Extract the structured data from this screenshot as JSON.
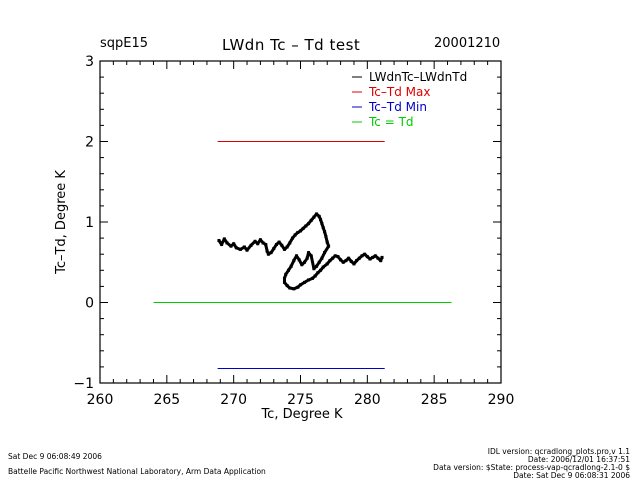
{
  "header": {
    "site": "sqpE15",
    "title": "LWdn Tc – Td test",
    "date": "20001210"
  },
  "footer": {
    "left_line1": "Sat Dec  9 06:08:49 2006",
    "left_line2": "Battelle Pacific Northwest National Laboratory, Arm Data Application",
    "right_line1": "IDL version: qcradlong_plots.pro,v 1.1",
    "right_line2": "Date: 2006/12/01 16:37:51",
    "right_line3": "Data version: $State: process-vap-qcradlong-2.1-0 $",
    "right_line4": "Date: Sat Dec  9 06:08:31 2006"
  },
  "colors": {
    "lwdn": "#000000",
    "max": "#dd0000",
    "min": "#0000cc",
    "zero": "#00cc00"
  },
  "chart_data": {
    "type": "scatter",
    "title": "LWdn Tc – Td test",
    "xlabel": "Tc, Degree K",
    "ylabel": "Tc–Td, Degree K",
    "xlim": [
      260,
      290
    ],
    "ylim": [
      -1,
      3
    ],
    "xticks": [
      "260",
      "265",
      "270",
      "275",
      "280",
      "285",
      "290"
    ],
    "yticks": [
      "−1",
      "0",
      "1",
      "2",
      "3"
    ],
    "legend_position": "top-right",
    "series": [
      {
        "name": "LWdnTc–LWdnTd",
        "kind": "scatter",
        "color": "#000000",
        "points": [
          [
            268.9,
            0.77
          ],
          [
            269.1,
            0.72
          ],
          [
            269.3,
            0.79
          ],
          [
            269.5,
            0.74
          ],
          [
            269.8,
            0.7
          ],
          [
            270.0,
            0.73
          ],
          [
            270.2,
            0.68
          ],
          [
            270.5,
            0.66
          ],
          [
            270.8,
            0.69
          ],
          [
            271.0,
            0.65
          ],
          [
            271.3,
            0.71
          ],
          [
            271.6,
            0.76
          ],
          [
            271.8,
            0.73
          ],
          [
            272.0,
            0.78
          ],
          [
            272.2,
            0.74
          ],
          [
            272.4,
            0.72
          ],
          [
            272.5,
            0.64
          ],
          [
            272.6,
            0.6
          ],
          [
            272.8,
            0.62
          ],
          [
            273.0,
            0.67
          ],
          [
            273.2,
            0.72
          ],
          [
            273.4,
            0.75
          ],
          [
            273.6,
            0.71
          ],
          [
            273.8,
            0.66
          ],
          [
            274.0,
            0.69
          ],
          [
            274.2,
            0.74
          ],
          [
            274.4,
            0.8
          ],
          [
            274.6,
            0.84
          ],
          [
            274.8,
            0.87
          ],
          [
            275.0,
            0.89
          ],
          [
            275.2,
            0.92
          ],
          [
            275.4,
            0.95
          ],
          [
            275.6,
            0.98
          ],
          [
            275.8,
            1.02
          ],
          [
            276.0,
            1.06
          ],
          [
            276.2,
            1.1
          ],
          [
            276.4,
            1.07
          ],
          [
            276.5,
            1.03
          ],
          [
            276.6,
            0.98
          ],
          [
            276.7,
            0.93
          ],
          [
            276.8,
            0.88
          ],
          [
            276.9,
            0.82
          ],
          [
            277.0,
            0.75
          ],
          [
            277.1,
            0.7
          ],
          [
            276.8,
            0.62
          ],
          [
            276.6,
            0.55
          ],
          [
            276.4,
            0.5
          ],
          [
            276.2,
            0.45
          ],
          [
            276.0,
            0.42
          ],
          [
            275.8,
            0.58
          ],
          [
            275.6,
            0.62
          ],
          [
            275.5,
            0.55
          ],
          [
            275.3,
            0.5
          ],
          [
            275.1,
            0.47
          ],
          [
            274.9,
            0.53
          ],
          [
            274.7,
            0.58
          ],
          [
            274.5,
            0.52
          ],
          [
            274.3,
            0.45
          ],
          [
            274.1,
            0.4
          ],
          [
            273.9,
            0.35
          ],
          [
            273.8,
            0.3
          ],
          [
            273.8,
            0.25
          ],
          [
            274.0,
            0.21
          ],
          [
            274.2,
            0.18
          ],
          [
            274.5,
            0.17
          ],
          [
            274.8,
            0.19
          ],
          [
            275.0,
            0.22
          ],
          [
            275.3,
            0.25
          ],
          [
            275.6,
            0.28
          ],
          [
            275.9,
            0.3
          ],
          [
            276.1,
            0.33
          ],
          [
            276.3,
            0.37
          ],
          [
            276.5,
            0.4
          ],
          [
            276.7,
            0.44
          ],
          [
            277.0,
            0.48
          ],
          [
            277.2,
            0.52
          ],
          [
            277.4,
            0.55
          ],
          [
            277.6,
            0.58
          ],
          [
            277.8,
            0.57
          ],
          [
            278.0,
            0.53
          ],
          [
            278.2,
            0.5
          ],
          [
            278.4,
            0.52
          ],
          [
            278.6,
            0.55
          ],
          [
            278.8,
            0.51
          ],
          [
            279.0,
            0.48
          ],
          [
            279.2,
            0.52
          ],
          [
            279.4,
            0.55
          ],
          [
            279.6,
            0.58
          ],
          [
            279.8,
            0.6
          ],
          [
            280.0,
            0.57
          ],
          [
            280.2,
            0.54
          ],
          [
            280.4,
            0.56
          ],
          [
            280.6,
            0.58
          ],
          [
            280.8,
            0.55
          ],
          [
            281.0,
            0.52
          ],
          [
            281.1,
            0.56
          ]
        ]
      },
      {
        "name": "Tc–Td Max",
        "kind": "line",
        "color": "#dd0000",
        "points": [
          [
            268.8,
            2.0
          ],
          [
            281.3,
            2.0
          ]
        ]
      },
      {
        "name": "Tc–Td Min",
        "kind": "line",
        "color": "#0000cc",
        "points": [
          [
            268.8,
            -0.82
          ],
          [
            281.3,
            -0.82
          ]
        ]
      },
      {
        "name": "Tc = Td",
        "kind": "line",
        "color": "#00cc00",
        "points": [
          [
            264.0,
            0.0
          ],
          [
            286.3,
            0.0
          ]
        ]
      }
    ]
  }
}
